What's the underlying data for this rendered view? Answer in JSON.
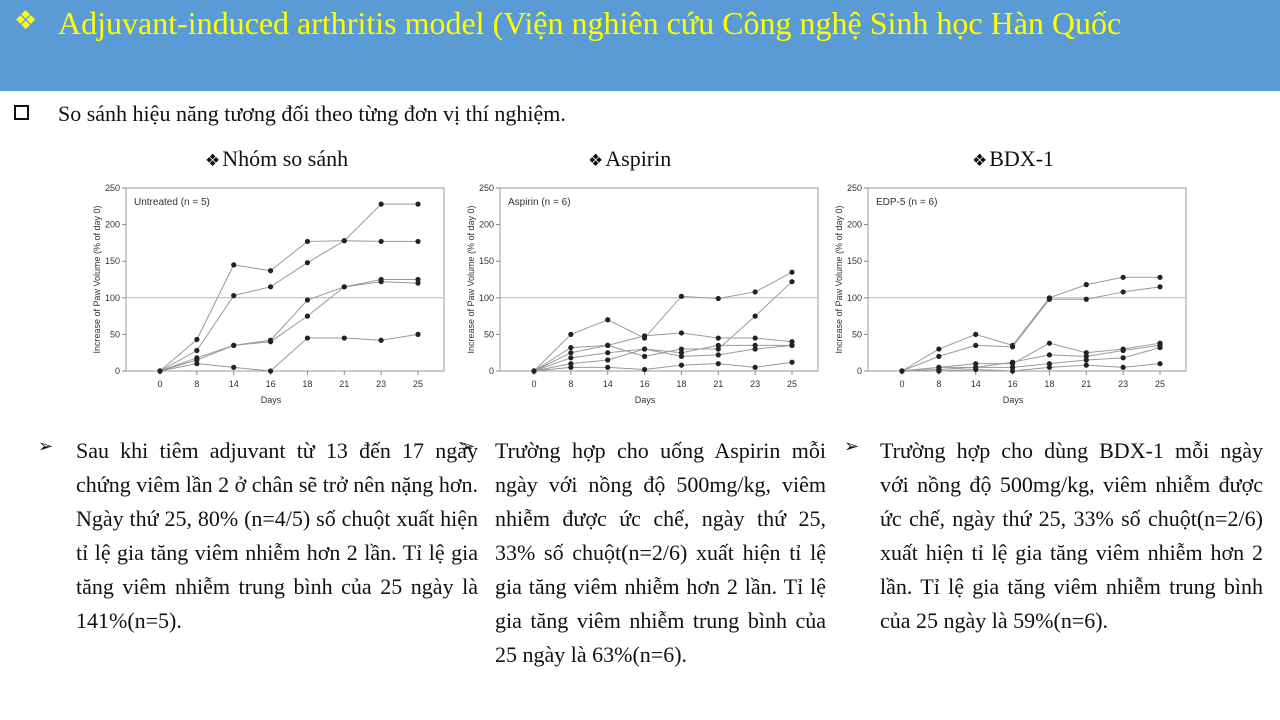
{
  "title": {
    "icon": "diamond-bullet-icon",
    "text": "Adjuvant-induced arthritis model (Viện nghiên cứu Công nghệ Sinh học Hàn Quốc"
  },
  "subtitle": {
    "icon": "checkbox-icon",
    "text": "So sánh hiệu năng tương đối theo từng đơn vị  thí nghiệm."
  },
  "panels": [
    {
      "heading": "Nhóm so sánh",
      "chart_label": "Untreated (n = 5)",
      "paragraph": "Sau khi tiêm adjuvant từ 13 đến 17 ngày chứng viêm lần 2 ở chân sẽ trở nên nặng hơn. Ngày thứ 25, 80% (n=4/5) số chuột xuất hiện tỉ lệ gia tăng viêm nhiễm hơn 2 lần. Tỉ lệ gia tăng viêm nhiễm trung bình của 25 ngày là 141%(n=5)."
    },
    {
      "heading": "Aspirin",
      "chart_label": "Aspirin (n = 6)",
      "paragraph": "Trường hợp cho uống Aspirin mỗi ngày với nồng độ 500mg/kg, viêm nhiễm được ức chế, ngày thứ 25, 33% số chuột(n=2/6) xuất hiện tỉ lệ gia tăng viêm nhiễm hơn 2 lần. Tỉ lệ gia tăng viêm nhiễm trung bình của 25 ngày là 63%(n=6)."
    },
    {
      "heading": "BDX-1",
      "chart_label": "EDP-5 (n = 6)",
      "paragraph": "Trường hợp cho dùng BDX-1 mỗi ngày với nồng độ 500mg/kg, viêm nhiễm được ức chế, ngày thứ 25, 33% số chuột(n=2/6) xuất hiện tỉ lệ gia tăng viêm nhiễm hơn 2 lần. Tỉ lệ gia tăng viêm nhiễm trung bình của 25 ngày là 59%(n=6)."
    }
  ],
  "chart_data": [
    {
      "type": "line",
      "title": "Untreated (n = 5)",
      "xlabel": "Days",
      "ylabel": "Increase of Paw Volume (% of day 0)",
      "categories": [
        "0",
        "8",
        "14",
        "16",
        "18",
        "21",
        "23",
        "25"
      ],
      "ylim": [
        0,
        250
      ],
      "yticks": [
        0,
        50,
        100,
        150,
        200,
        250
      ],
      "reference_line": 100,
      "series": [
        {
          "values": [
            0,
            43,
            145,
            137,
            177,
            178,
            228,
            228
          ]
        },
        {
          "values": [
            0,
            28,
            103,
            115,
            148,
            178,
            177,
            177
          ]
        },
        {
          "values": [
            0,
            18,
            35,
            42,
            97,
            115,
            125,
            125
          ]
        },
        {
          "values": [
            0,
            15,
            35,
            40,
            75,
            115,
            122,
            120
          ]
        },
        {
          "values": [
            0,
            10,
            5,
            0,
            45,
            45,
            42,
            50
          ]
        }
      ]
    },
    {
      "type": "line",
      "title": "Aspirin (n = 6)",
      "xlabel": "Days",
      "ylabel": "Increase of Paw Volume (% of day 0)",
      "categories": [
        "0",
        "8",
        "14",
        "16",
        "18",
        "21",
        "23",
        "25"
      ],
      "ylim": [
        0,
        250
      ],
      "yticks": [
        0,
        50,
        100,
        150,
        200,
        250
      ],
      "reference_line": 100,
      "series": [
        {
          "values": [
            0,
            50,
            70,
            45,
            102,
            99,
            108,
            135
          ]
        },
        {
          "values": [
            0,
            32,
            35,
            20,
            30,
            30,
            75,
            122
          ]
        },
        {
          "values": [
            0,
            25,
            35,
            48,
            52,
            45,
            45,
            40
          ]
        },
        {
          "values": [
            0,
            18,
            25,
            30,
            25,
            35,
            35,
            35
          ]
        },
        {
          "values": [
            0,
            10,
            15,
            30,
            20,
            22,
            30,
            35
          ]
        },
        {
          "values": [
            0,
            5,
            5,
            2,
            8,
            10,
            5,
            12
          ]
        }
      ]
    },
    {
      "type": "line",
      "title": "EDP-5 (n = 6)",
      "xlabel": "Days",
      "ylabel": "Increase of Paw Volume (% of day 0)",
      "categories": [
        "0",
        "8",
        "14",
        "16",
        "18",
        "21",
        "23",
        "25"
      ],
      "ylim": [
        0,
        250
      ],
      "yticks": [
        0,
        50,
        100,
        150,
        200,
        250
      ],
      "reference_line": 100,
      "series": [
        {
          "values": [
            0,
            30,
            50,
            35,
            100,
            118,
            128,
            128
          ]
        },
        {
          "values": [
            0,
            20,
            35,
            33,
            98,
            98,
            108,
            115
          ]
        },
        {
          "values": [
            0,
            5,
            10,
            10,
            38,
            25,
            30,
            38
          ]
        },
        {
          "values": [
            0,
            5,
            5,
            12,
            22,
            20,
            28,
            35
          ]
        },
        {
          "values": [
            0,
            2,
            5,
            5,
            10,
            15,
            18,
            32
          ]
        },
        {
          "values": [
            0,
            0,
            2,
            0,
            5,
            8,
            5,
            10
          ]
        }
      ]
    }
  ]
}
